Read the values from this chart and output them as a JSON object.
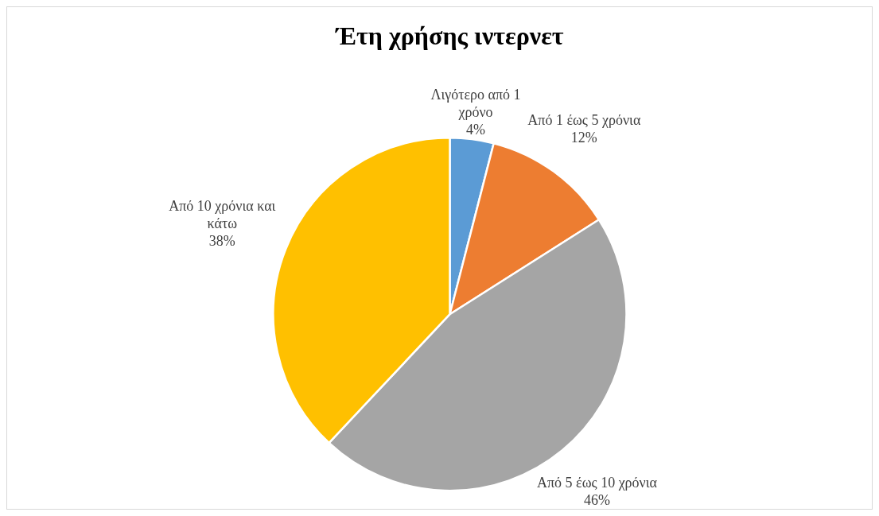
{
  "chart_data": {
    "type": "pie",
    "title": "Έτη χρήσης ιντερνετ",
    "categories": [
      "Λιγότερο από 1 χρόνο",
      "Από 1 έως 5 χρόνια",
      "Από 5 έως 10 χρόνια",
      "Από 10 χρόνια και κάτω"
    ],
    "values": [
      4,
      12,
      46,
      38
    ],
    "colors": [
      "#5b9bd5",
      "#ed7d31",
      "#a5a5a5",
      "#ffc000"
    ],
    "value_labels": [
      "4%",
      "12%",
      "46%",
      "38%"
    ],
    "legend": false
  }
}
